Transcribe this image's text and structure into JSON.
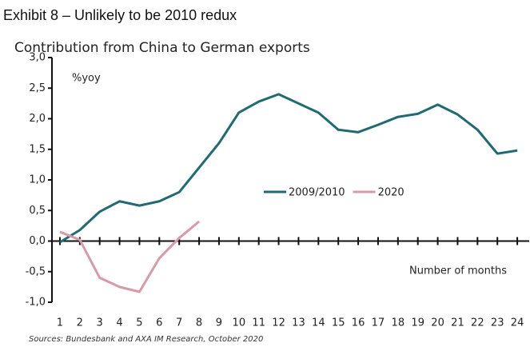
{
  "header": {
    "title": "Exhibit 8 – Unlikely to be 2010 redux"
  },
  "chart_data": {
    "type": "line",
    "title": "Contribution from China to German exports",
    "y_label": "%yoy",
    "x_label": "Number of months",
    "source": "Sources: Bundesbank and AXA IM Research, October 2020",
    "x": [
      1,
      2,
      3,
      4,
      5,
      6,
      7,
      8,
      9,
      10,
      11,
      12,
      13,
      14,
      15,
      16,
      17,
      18,
      19,
      20,
      21,
      22,
      23,
      24
    ],
    "series": [
      {
        "name": "2009/2010",
        "color": "#1f6b73",
        "values": [
          -0.02,
          0.18,
          0.48,
          0.65,
          0.58,
          0.65,
          0.8,
          1.2,
          1.6,
          2.1,
          2.28,
          2.4,
          2.25,
          2.1,
          1.82,
          1.78,
          1.9,
          2.03,
          2.08,
          2.23,
          2.07,
          1.82,
          1.43,
          1.48
        ]
      },
      {
        "name": "2020",
        "color": "#d99aa8",
        "values": [
          0.15,
          0.02,
          -0.6,
          -0.75,
          -0.83,
          -0.28,
          0.05,
          0.32,
          null,
          null,
          null,
          null,
          null,
          null,
          null,
          null,
          null,
          null,
          null,
          null,
          null,
          null,
          null,
          null
        ]
      }
    ],
    "xlim": [
      0.6,
      24.6
    ],
    "xticks": [
      1,
      2,
      3,
      4,
      5,
      6,
      7,
      8,
      9,
      10,
      11,
      12,
      13,
      14,
      15,
      16,
      17,
      18,
      19,
      20,
      21,
      22,
      23,
      24
    ],
    "ylim": [
      -1,
      3
    ],
    "yticks": [
      {
        "value": -1,
        "label": "-1,0"
      },
      {
        "value": -0.5,
        "label": "-0,5"
      },
      {
        "value": 0,
        "label": "0,0"
      },
      {
        "value": 0.5,
        "label": "0,5"
      },
      {
        "value": 1,
        "label": "1,0"
      },
      {
        "value": 1.5,
        "label": "1,5"
      },
      {
        "value": 2,
        "label": "2,0"
      },
      {
        "value": 2.5,
        "label": "2,5"
      },
      {
        "value": 3,
        "label": "3,0"
      }
    ],
    "grid": false
  }
}
